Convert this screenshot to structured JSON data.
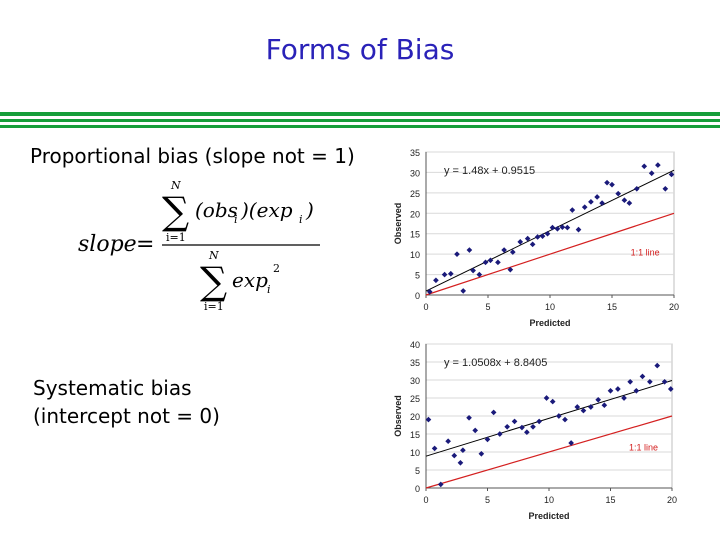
{
  "slide": {
    "title": "Forms of Bias",
    "proportional_label": "Proportional bias (slope not = 1)",
    "systematic_label_line1": "Systematic bias",
    "systematic_label_line2": "(intercept not = 0)"
  },
  "formula": {
    "lhs": "slope",
    "sum_top": "N",
    "sum_bottom": "i=1",
    "numerator": "(obs",
    "numerator_sub": "i",
    "numerator_mid": ")(exp",
    "numerator_sub2": "i",
    "numerator_end": ")",
    "denominator": "exp",
    "denominator_sub": "i",
    "denominator_sup": "2"
  },
  "colors": {
    "title": "#2a22b8",
    "rule": "#169e3a",
    "points": "#1a1a7a",
    "fit_line": "#000000",
    "one_to_one_line": "#d42020",
    "plot_bg": "#ffffff",
    "grid": "#d9d9d9"
  },
  "chart_data": [
    {
      "type": "scatter",
      "xlabel": "Predicted",
      "ylabel": "Observed",
      "xlim": [
        0,
        20
      ],
      "ylim": [
        0,
        35
      ],
      "xticks": [
        0,
        5,
        10,
        15,
        20
      ],
      "yticks": [
        0,
        5,
        10,
        15,
        20,
        25,
        30,
        35
      ],
      "equation": "y = 1.48x + 0.9515",
      "fit": {
        "slope": 1.48,
        "intercept": 0.9515
      },
      "one_to_one_label": "1:1 line",
      "grid": true,
      "points": [
        [
          0.3,
          0.8
        ],
        [
          0.8,
          3.6
        ],
        [
          1.5,
          5.0
        ],
        [
          2.0,
          5.2
        ],
        [
          2.5,
          10.0
        ],
        [
          3.0,
          1.0
        ],
        [
          3.5,
          11.0
        ],
        [
          3.8,
          6.0
        ],
        [
          4.3,
          5.0
        ],
        [
          4.8,
          8.0
        ],
        [
          5.2,
          8.5
        ],
        [
          5.8,
          8.0
        ],
        [
          6.3,
          11.0
        ],
        [
          6.8,
          6.2
        ],
        [
          7.0,
          10.5
        ],
        [
          7.6,
          13.0
        ],
        [
          8.2,
          13.8
        ],
        [
          8.6,
          12.4
        ],
        [
          9.0,
          14.2
        ],
        [
          9.4,
          14.4
        ],
        [
          9.8,
          15.0
        ],
        [
          10.2,
          16.5
        ],
        [
          10.6,
          16.2
        ],
        [
          11.0,
          16.6
        ],
        [
          11.4,
          16.5
        ],
        [
          11.8,
          20.8
        ],
        [
          12.3,
          16.0
        ],
        [
          12.8,
          21.5
        ],
        [
          13.3,
          22.8
        ],
        [
          13.8,
          24.0
        ],
        [
          14.2,
          22.5
        ],
        [
          14.6,
          27.5
        ],
        [
          15.0,
          27.0
        ],
        [
          15.5,
          24.8
        ],
        [
          16.0,
          23.2
        ],
        [
          16.4,
          22.5
        ],
        [
          17.0,
          26.0
        ],
        [
          17.6,
          31.5
        ],
        [
          18.2,
          29.8
        ],
        [
          18.7,
          31.8
        ],
        [
          19.3,
          26.0
        ],
        [
          19.8,
          29.5
        ]
      ]
    },
    {
      "type": "scatter",
      "xlabel": "Predicted",
      "ylabel": "Observed",
      "xlim": [
        0,
        20
      ],
      "ylim": [
        0,
        40
      ],
      "xticks": [
        0,
        5,
        10,
        15,
        20
      ],
      "yticks": [
        0,
        5,
        10,
        15,
        20,
        25,
        30,
        35,
        40
      ],
      "equation": "y = 1.0508x + 8.8405",
      "fit": {
        "slope": 1.0508,
        "intercept": 8.8405
      },
      "one_to_one_label": "1:1 line",
      "grid": true,
      "points": [
        [
          0.2,
          19.0
        ],
        [
          0.7,
          11.0
        ],
        [
          1.2,
          1.0
        ],
        [
          1.8,
          13.0
        ],
        [
          2.3,
          9.0
        ],
        [
          2.8,
          7.0
        ],
        [
          3.0,
          10.5
        ],
        [
          3.5,
          19.5
        ],
        [
          4.0,
          16.0
        ],
        [
          4.5,
          9.5
        ],
        [
          5.0,
          13.5
        ],
        [
          5.5,
          21.0
        ],
        [
          6.0,
          15.0
        ],
        [
          6.6,
          17.0
        ],
        [
          7.2,
          18.5
        ],
        [
          7.8,
          16.8
        ],
        [
          8.2,
          15.5
        ],
        [
          8.7,
          17.0
        ],
        [
          9.2,
          18.5
        ],
        [
          9.8,
          25.0
        ],
        [
          10.3,
          24.0
        ],
        [
          10.8,
          20.0
        ],
        [
          11.3,
          19.0
        ],
        [
          11.8,
          12.5
        ],
        [
          12.3,
          22.5
        ],
        [
          12.8,
          21.5
        ],
        [
          13.4,
          22.5
        ],
        [
          14.0,
          24.5
        ],
        [
          14.5,
          23.0
        ],
        [
          15.0,
          27.0
        ],
        [
          15.6,
          27.5
        ],
        [
          16.1,
          25.0
        ],
        [
          16.6,
          29.5
        ],
        [
          17.1,
          27.0
        ],
        [
          17.6,
          31.0
        ],
        [
          18.2,
          29.5
        ],
        [
          18.8,
          34.0
        ],
        [
          19.4,
          29.5
        ],
        [
          19.9,
          27.5
        ]
      ]
    }
  ]
}
